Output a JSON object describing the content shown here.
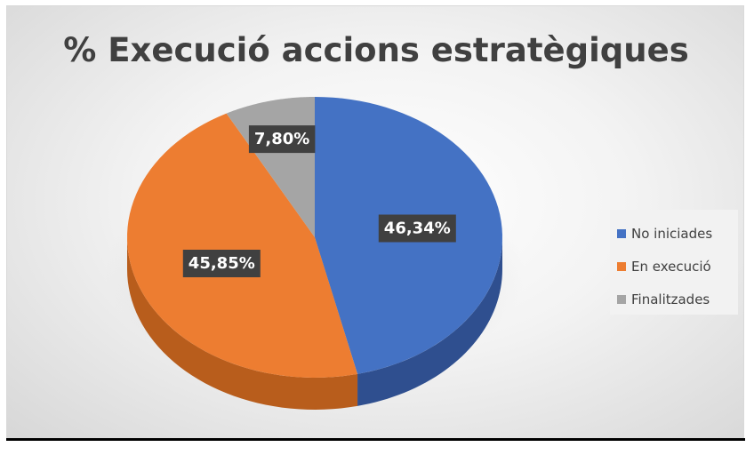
{
  "chart_data": {
    "type": "pie",
    "title": "% Execució accions estratègiques",
    "categories": [
      "No iniciades",
      "En execució",
      "Finalitzades"
    ],
    "values": [
      46.34,
      45.85,
      7.8
    ],
    "data_labels": [
      "46,34%",
      "45,85%",
      "7,80%"
    ],
    "colors": [
      "#4472c4",
      "#ed7d31",
      "#a5a5a5"
    ],
    "side_colors": [
      "#2f4f8f",
      "#b85d1c",
      "#7a7a7a"
    ],
    "legend_position": "right",
    "style": "3d"
  }
}
